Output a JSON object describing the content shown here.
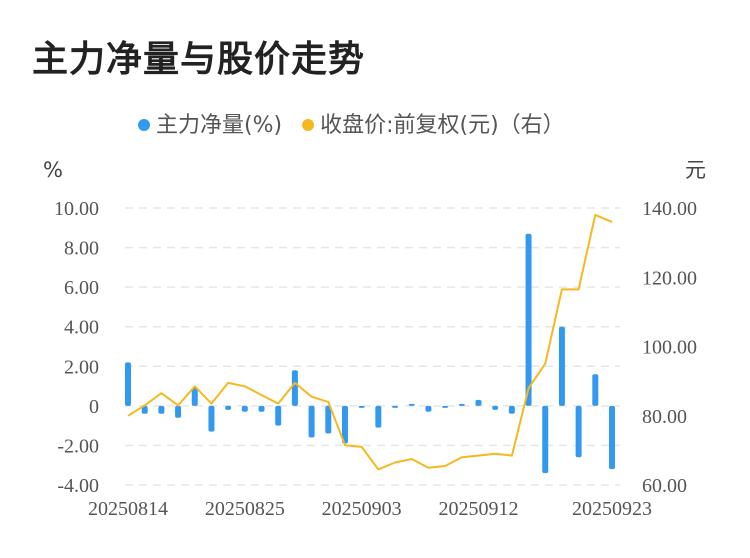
{
  "chart_data": {
    "type": "bar",
    "title": "主力净量与股价走势",
    "legend": [
      {
        "name": "主力净量(%)",
        "color": "#3399ee",
        "marker": "dot"
      },
      {
        "name": "收盘价:前复权(元)（右）",
        "color": "#f5b820",
        "marker": "dot"
      }
    ],
    "legend_position": "top-center",
    "y_left": {
      "unit": "%",
      "min": -4,
      "max": 10,
      "ticks": [
        "10.00",
        "8.00",
        "6.00",
        "4.00",
        "2.00",
        "0",
        "-2.00",
        "-4.00"
      ]
    },
    "y_right": {
      "unit": "元",
      "min": 60,
      "max": 140,
      "ticks": [
        "140.00",
        "120.00",
        "100.00",
        "80.00",
        "60.00"
      ]
    },
    "grid": true,
    "x_tick_labels": [
      "20250814",
      "20250825",
      "20250903",
      "20250912",
      "20250923"
    ],
    "x_tick_indices": [
      0,
      7,
      14,
      21,
      29
    ],
    "n": 30,
    "series": [
      {
        "name": "主力净量(%)",
        "type": "bar",
        "axis": "left",
        "color": "#3399ee",
        "values": [
          2.2,
          -0.4,
          -0.4,
          -0.6,
          0.9,
          -1.3,
          -0.2,
          -0.3,
          -0.3,
          -1.0,
          1.8,
          -1.6,
          -1.4,
          -1.9,
          -0.1,
          -1.1,
          -0.1,
          0.1,
          -0.3,
          -0.1,
          0.1,
          0.3,
          -0.2,
          -0.4,
          8.7,
          -3.4,
          4.0,
          -2.6,
          1.6,
          -3.2
        ]
      },
      {
        "name": "收盘价:前复权(元)（右）",
        "type": "line",
        "axis": "right",
        "color": "#f5b820",
        "values": [
          80.0,
          83.0,
          86.5,
          83.0,
          88.5,
          83.5,
          89.5,
          88.5,
          86.0,
          83.5,
          89.5,
          85.5,
          84.0,
          71.5,
          71.0,
          64.5,
          66.5,
          67.5,
          65.0,
          65.5,
          68.0,
          68.5,
          69.0,
          68.5,
          88.0,
          95.0,
          116.5,
          116.5,
          138.0,
          136.0
        ]
      }
    ]
  }
}
